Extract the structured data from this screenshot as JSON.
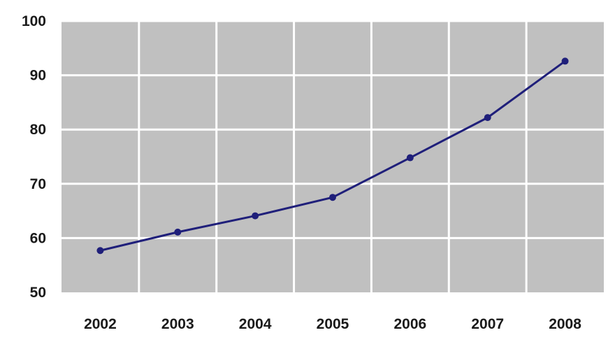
{
  "chart_data": {
    "type": "line",
    "title": "",
    "xlabel": "",
    "ylabel": "",
    "categories": [
      "2002",
      "2003",
      "2004",
      "2005",
      "2006",
      "2007",
      "2008"
    ],
    "series": [
      {
        "values": [
          57.7,
          61.1,
          64.1,
          67.5,
          74.8,
          82.2,
          92.6
        ]
      }
    ],
    "ylim": [
      50,
      100
    ],
    "y_ticks": [
      50,
      60,
      70,
      80,
      90,
      100
    ],
    "grid": true,
    "legend": "none",
    "colors": {
      "plot_background": "#c0c0c0",
      "gridline": "#ffffff",
      "series_line": "#1f1f7a"
    }
  }
}
